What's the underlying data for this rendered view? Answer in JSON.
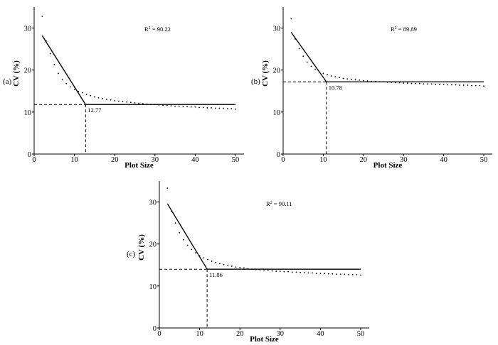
{
  "chart_data": [
    {
      "type": "line",
      "panel_label": "(a)",
      "xlabel": "Plot Size",
      "ylabel": "CV (%)",
      "xlim": [
        0,
        50
      ],
      "ylim": [
        0,
        35
      ],
      "xticks": [
        0,
        10,
        20,
        30,
        40,
        50
      ],
      "yticks": [
        0,
        10,
        20,
        30
      ],
      "r2_prefix": "R",
      "r2_sup": "2",
      "r2_value": " = 90.22",
      "optimum_x": 12.77,
      "optimum_label": "12.77",
      "plateau_y": 11.8,
      "linear_segment": [
        [
          2,
          28.2
        ],
        [
          12.77,
          11.8
        ]
      ],
      "observed_points": [
        [
          2,
          32.8
        ],
        [
          3,
          26.9
        ],
        [
          4,
          23.9
        ],
        [
          5,
          21.3
        ],
        [
          6,
          19.2
        ],
        [
          7,
          17.7
        ],
        [
          8,
          16.8
        ],
        [
          9,
          16.0
        ],
        [
          10,
          15.4
        ],
        [
          11,
          14.9
        ],
        [
          12,
          14.6
        ],
        [
          13,
          14.2
        ],
        [
          14,
          13.9
        ],
        [
          15,
          13.6
        ],
        [
          16,
          13.4
        ],
        [
          17,
          13.2
        ],
        [
          18,
          13.0
        ],
        [
          19,
          12.9
        ],
        [
          20,
          12.7
        ],
        [
          21,
          12.6
        ],
        [
          22,
          12.5
        ],
        [
          23,
          12.4
        ],
        [
          24,
          12.3
        ],
        [
          25,
          12.2
        ],
        [
          26,
          12.1
        ],
        [
          27,
          12.0
        ],
        [
          28,
          11.9
        ],
        [
          29,
          11.8
        ],
        [
          30,
          11.8
        ],
        [
          31,
          11.7
        ],
        [
          32,
          11.6
        ],
        [
          33,
          11.6
        ],
        [
          34,
          11.5
        ],
        [
          35,
          11.4
        ],
        [
          36,
          11.4
        ],
        [
          37,
          11.3
        ],
        [
          38,
          11.3
        ],
        [
          39,
          11.2
        ],
        [
          40,
          11.2
        ],
        [
          41,
          11.1
        ],
        [
          42,
          11.1
        ],
        [
          43,
          11.0
        ],
        [
          44,
          11.0
        ],
        [
          45,
          10.9
        ],
        [
          46,
          10.9
        ],
        [
          47,
          10.9
        ],
        [
          48,
          10.8
        ],
        [
          49,
          10.8
        ],
        [
          50,
          10.7
        ]
      ]
    },
    {
      "type": "line",
      "panel_label": "(b)",
      "xlabel": "Plot Size",
      "ylabel": "CV (%)",
      "xlim": [
        0,
        50
      ],
      "ylim": [
        0,
        35
      ],
      "xticks": [
        0,
        10,
        20,
        30,
        40,
        50
      ],
      "yticks": [
        0,
        10,
        20,
        30
      ],
      "r2_prefix": "R",
      "r2_sup": "2",
      "r2_value": " = 89.89",
      "optimum_x": 10.78,
      "optimum_label": "10.78",
      "plateau_y": 17.2,
      "linear_segment": [
        [
          2,
          29.0
        ],
        [
          10.78,
          17.2
        ]
      ],
      "observed_points": [
        [
          2,
          32.2
        ],
        [
          3,
          27.4
        ],
        [
          4,
          25.1
        ],
        [
          5,
          23.3
        ],
        [
          6,
          21.9
        ],
        [
          7,
          20.9
        ],
        [
          8,
          20.2
        ],
        [
          9,
          19.6
        ],
        [
          10,
          19.2
        ],
        [
          11,
          18.9
        ],
        [
          12,
          18.6
        ],
        [
          13,
          18.4
        ],
        [
          14,
          18.2
        ],
        [
          15,
          18.0
        ],
        [
          16,
          17.9
        ],
        [
          17,
          17.8
        ],
        [
          18,
          17.7
        ],
        [
          19,
          17.6
        ],
        [
          20,
          17.5
        ],
        [
          21,
          17.4
        ],
        [
          22,
          17.3
        ],
        [
          23,
          17.3
        ],
        [
          24,
          17.2
        ],
        [
          25,
          17.2
        ],
        [
          26,
          17.1
        ],
        [
          27,
          17.1
        ],
        [
          28,
          17.0
        ],
        [
          29,
          17.0
        ],
        [
          30,
          16.9
        ],
        [
          31,
          16.9
        ],
        [
          32,
          16.8
        ],
        [
          33,
          16.8
        ],
        [
          34,
          16.8
        ],
        [
          35,
          16.7
        ],
        [
          36,
          16.7
        ],
        [
          37,
          16.7
        ],
        [
          38,
          16.6
        ],
        [
          39,
          16.6
        ],
        [
          40,
          16.6
        ],
        [
          41,
          16.5
        ],
        [
          42,
          16.5
        ],
        [
          43,
          16.5
        ],
        [
          44,
          16.4
        ],
        [
          45,
          16.4
        ],
        [
          46,
          16.4
        ],
        [
          47,
          16.3
        ],
        [
          48,
          16.3
        ],
        [
          49,
          16.3
        ],
        [
          50,
          16.2
        ]
      ]
    },
    {
      "type": "line",
      "panel_label": "(c)",
      "xlabel": "Plot Size",
      "ylabel": "CV (%)",
      "xlim": [
        0,
        50
      ],
      "ylim": [
        0,
        35
      ],
      "xticks": [
        0,
        10,
        20,
        30,
        40,
        50
      ],
      "yticks": [
        0,
        10,
        20,
        30
      ],
      "r2_prefix": "R",
      "r2_sup": "2",
      "r2_value": " = 90.11",
      "optimum_x": 11.86,
      "optimum_label": "11.86",
      "plateau_y": 14.0,
      "linear_segment": [
        [
          2,
          29.6
        ],
        [
          11.86,
          14.0
        ]
      ],
      "observed_points": [
        [
          2,
          33.3
        ],
        [
          3,
          27.8
        ],
        [
          4,
          25.0
        ],
        [
          5,
          22.7
        ],
        [
          6,
          21.0
        ],
        [
          7,
          19.7
        ],
        [
          8,
          18.7
        ],
        [
          9,
          17.9
        ],
        [
          10,
          17.2
        ],
        [
          11,
          16.7
        ],
        [
          12,
          16.3
        ],
        [
          13,
          15.9
        ],
        [
          14,
          15.6
        ],
        [
          15,
          15.3
        ],
        [
          16,
          15.1
        ],
        [
          17,
          14.9
        ],
        [
          18,
          14.7
        ],
        [
          19,
          14.5
        ],
        [
          20,
          14.4
        ],
        [
          21,
          14.3
        ],
        [
          22,
          14.1
        ],
        [
          23,
          14.0
        ],
        [
          24,
          13.9
        ],
        [
          25,
          13.8
        ],
        [
          26,
          13.8
        ],
        [
          27,
          13.7
        ],
        [
          28,
          13.6
        ],
        [
          29,
          13.5
        ],
        [
          30,
          13.5
        ],
        [
          31,
          13.4
        ],
        [
          32,
          13.4
        ],
        [
          33,
          13.3
        ],
        [
          34,
          13.3
        ],
        [
          35,
          13.2
        ],
        [
          36,
          13.2
        ],
        [
          37,
          13.1
        ],
        [
          38,
          13.1
        ],
        [
          39,
          13.0
        ],
        [
          40,
          13.0
        ],
        [
          41,
          13.0
        ],
        [
          42,
          12.9
        ],
        [
          43,
          12.9
        ],
        [
          44,
          12.8
        ],
        [
          45,
          12.8
        ],
        [
          46,
          12.8
        ],
        [
          47,
          12.7
        ],
        [
          48,
          12.7
        ],
        [
          49,
          12.7
        ],
        [
          50,
          12.6
        ]
      ]
    }
  ]
}
